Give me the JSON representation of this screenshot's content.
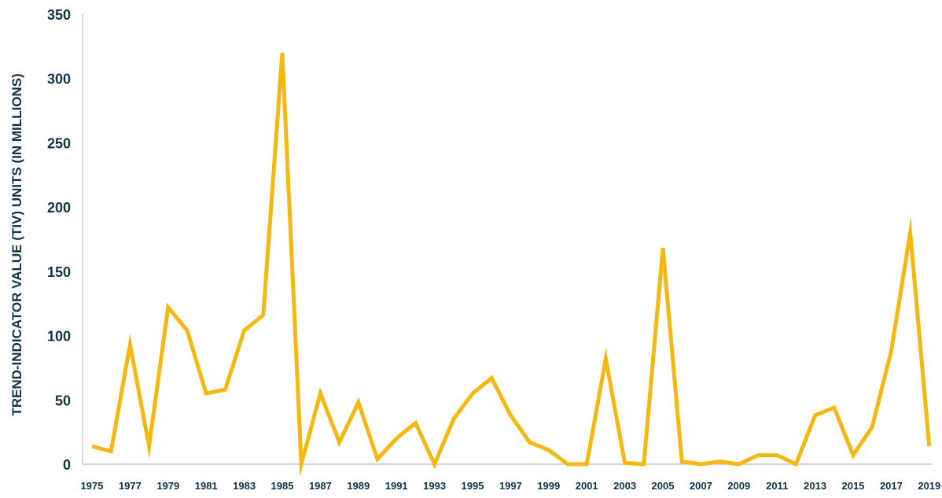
{
  "chart_data": {
    "type": "line",
    "title": "",
    "xlabel": "",
    "ylabel": "TREND-INDICATOR VALUE (TIV) UNITS (IN MILLIONS)",
    "ylim": [
      0,
      350
    ],
    "yticks": [
      0,
      50,
      100,
      150,
      200,
      250,
      300,
      350
    ],
    "x_tick_labels": [
      "1975",
      "1977",
      "1979",
      "1981",
      "1983",
      "1985",
      "1987",
      "1989",
      "1991",
      "1993",
      "1995",
      "1997",
      "1999",
      "2001",
      "2003",
      "2005",
      "2007",
      "2009",
      "2011",
      "2013",
      "2015",
      "2017",
      "2019"
    ],
    "grid": false,
    "legend": "none",
    "series": [
      {
        "color": "#f5b811",
        "x": [
          1975,
          1976,
          1977,
          1978,
          1979,
          1980,
          1981,
          1982,
          1983,
          1984,
          1985,
          1986,
          1987,
          1988,
          1989,
          1990,
          1991,
          1992,
          1993,
          1994,
          1995,
          1996,
          1997,
          1998,
          1999,
          2000,
          2001,
          2002,
          2003,
          2004,
          2005,
          2006,
          2007,
          2008,
          2009,
          2010,
          2011,
          2012,
          2013,
          2014,
          2015,
          2016,
          2017,
          2018,
          2019
        ],
        "values": [
          14,
          10,
          93,
          14,
          122,
          104,
          55,
          58,
          104,
          116,
          320,
          0,
          55,
          17,
          48,
          4,
          20,
          32,
          0,
          35,
          55,
          67,
          38,
          17,
          11,
          0,
          0,
          82,
          1,
          0,
          168,
          2,
          0,
          2,
          0,
          7,
          7,
          0,
          38,
          44,
          7,
          29,
          88,
          180,
          14
        ]
      }
    ]
  }
}
